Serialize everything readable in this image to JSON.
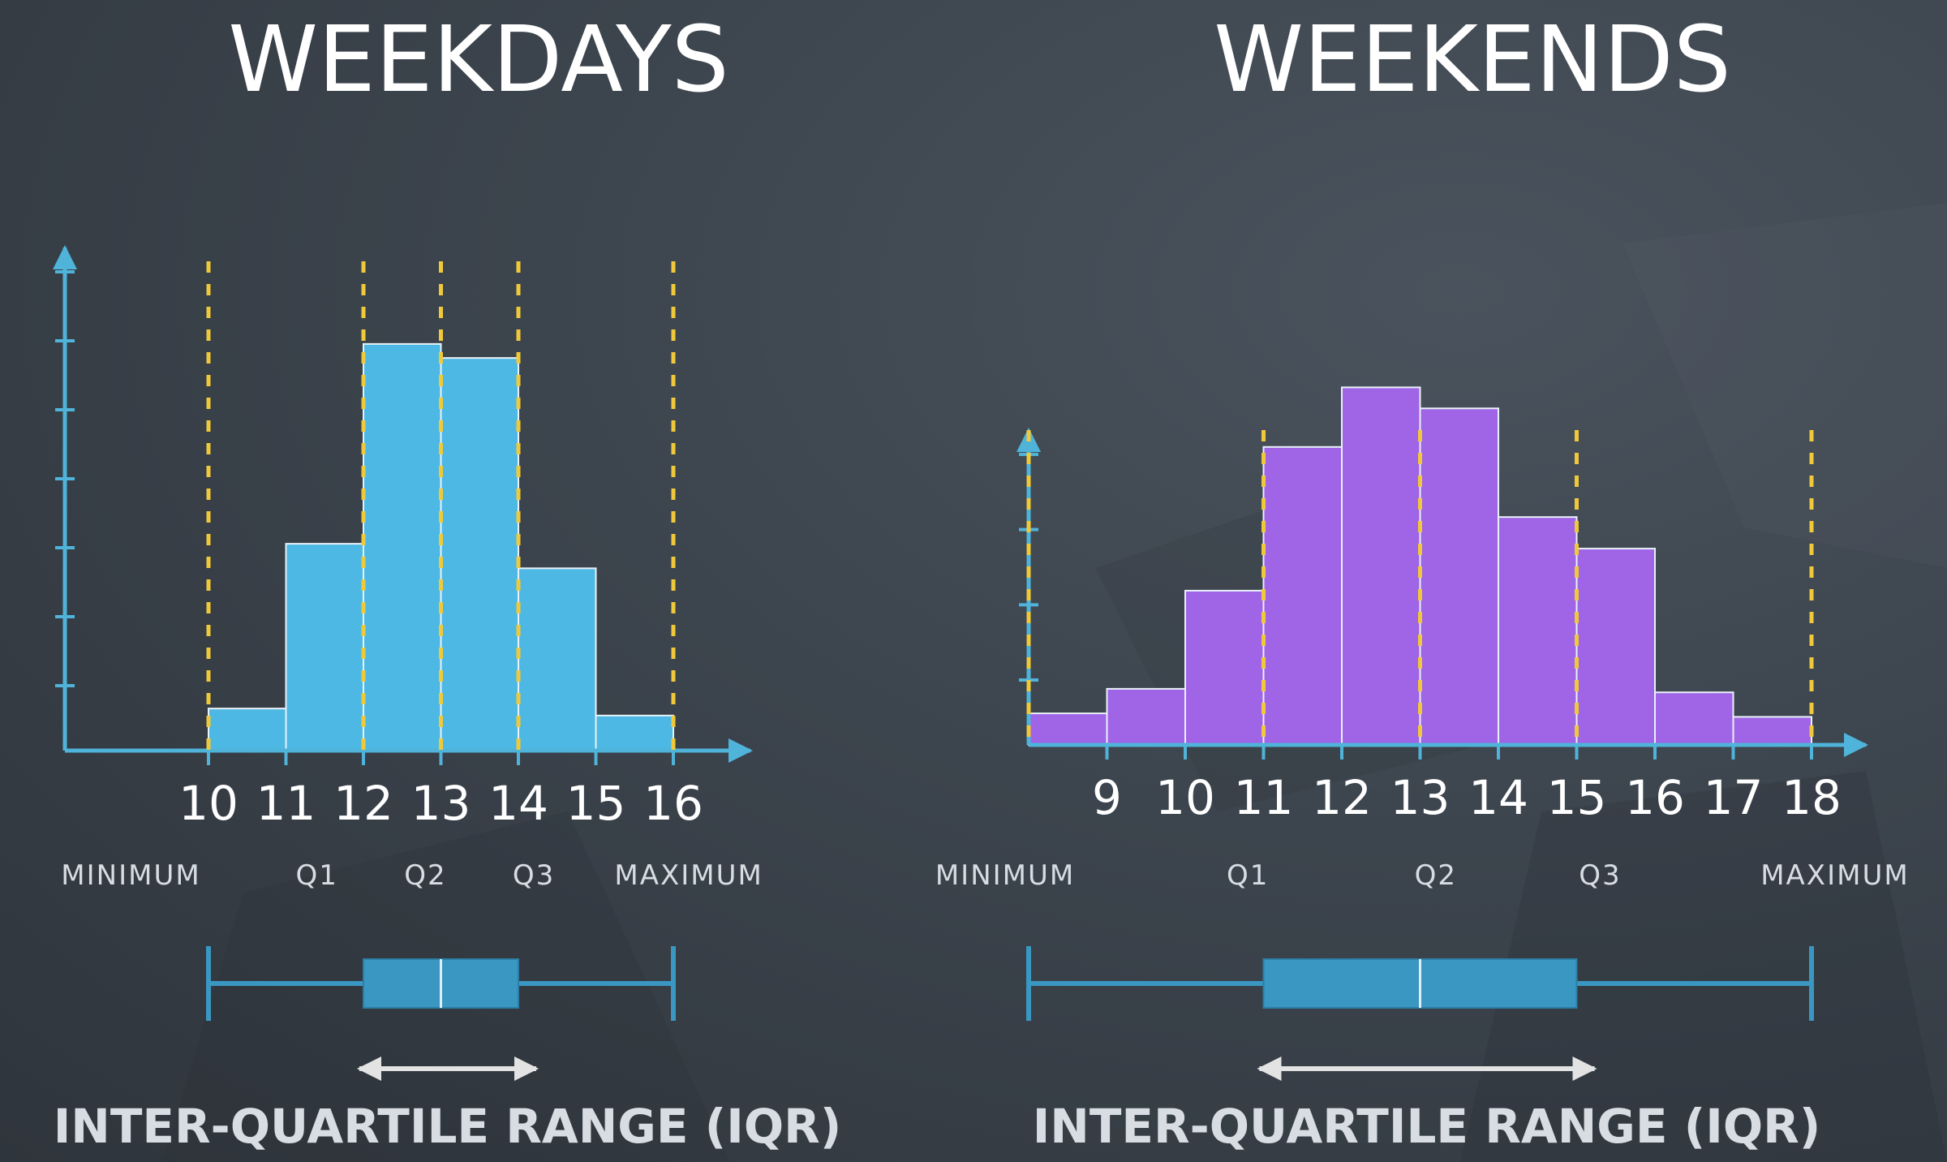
{
  "colors": {
    "axis": "#4fb3da",
    "weekday_bar": "#4db8e3",
    "weekend_bar": "#a064e6",
    "quartile_line": "#f0c93a",
    "box": "#3a97c2",
    "text": "#ffffff",
    "label_text": "#d7dde3",
    "arrow": "#e3e3e3"
  },
  "chart_data": [
    {
      "type": "bar",
      "title": "WEEKDAYS",
      "bin_edges": [
        10,
        11,
        12,
        13,
        14,
        15,
        16
      ],
      "x_ticks": [
        "10",
        "11",
        "12",
        "13",
        "14",
        "15",
        "16"
      ],
      "values": [
        1.2,
        5.9,
        11.6,
        11.2,
        5.2,
        1.0
      ],
      "ylim": [
        0,
        12.5
      ],
      "y_tick_count": 7,
      "quartiles": {
        "min": 10,
        "q1": 12,
        "q2": 13,
        "q3": 14,
        "max": 16
      },
      "stat_labels": [
        {
          "text": "MINIMUM",
          "at": 9.0
        },
        {
          "text": "Q1",
          "at": 11.4
        },
        {
          "text": "Q2",
          "at": 12.8
        },
        {
          "text": "Q3",
          "at": 14.2
        },
        {
          "text": "MAXIMUM",
          "at": 16.2
        }
      ],
      "iqr_label": "INTER-QUARTILE RANGE (IQR)"
    },
    {
      "type": "bar",
      "title": "WEEKENDS",
      "bin_edges": [
        8,
        9,
        10,
        11,
        12,
        13,
        14,
        15,
        16,
        17,
        18
      ],
      "x_ticks": [
        "9",
        "10",
        "11",
        "12",
        "13",
        "14",
        "15",
        "16",
        "17",
        "18"
      ],
      "values": [
        0.9,
        1.6,
        4.4,
        8.5,
        10.2,
        9.6,
        6.5,
        5.6,
        1.5,
        0.8
      ],
      "ylim": [
        0,
        12.5
      ],
      "y_tick_count": 4,
      "quartiles": {
        "min": 8,
        "q1": 11,
        "q2": 13,
        "q3": 15,
        "max": 18
      },
      "stat_labels": [
        {
          "text": "MINIMUM",
          "at": 7.7
        },
        {
          "text": "Q1",
          "at": 10.8
        },
        {
          "text": "Q2",
          "at": 13.2
        },
        {
          "text": "Q3",
          "at": 15.3
        },
        {
          "text": "MAXIMUM",
          "at": 18.3
        }
      ],
      "iqr_label": "INTER-QUARTILE RANGE (IQR)"
    }
  ]
}
